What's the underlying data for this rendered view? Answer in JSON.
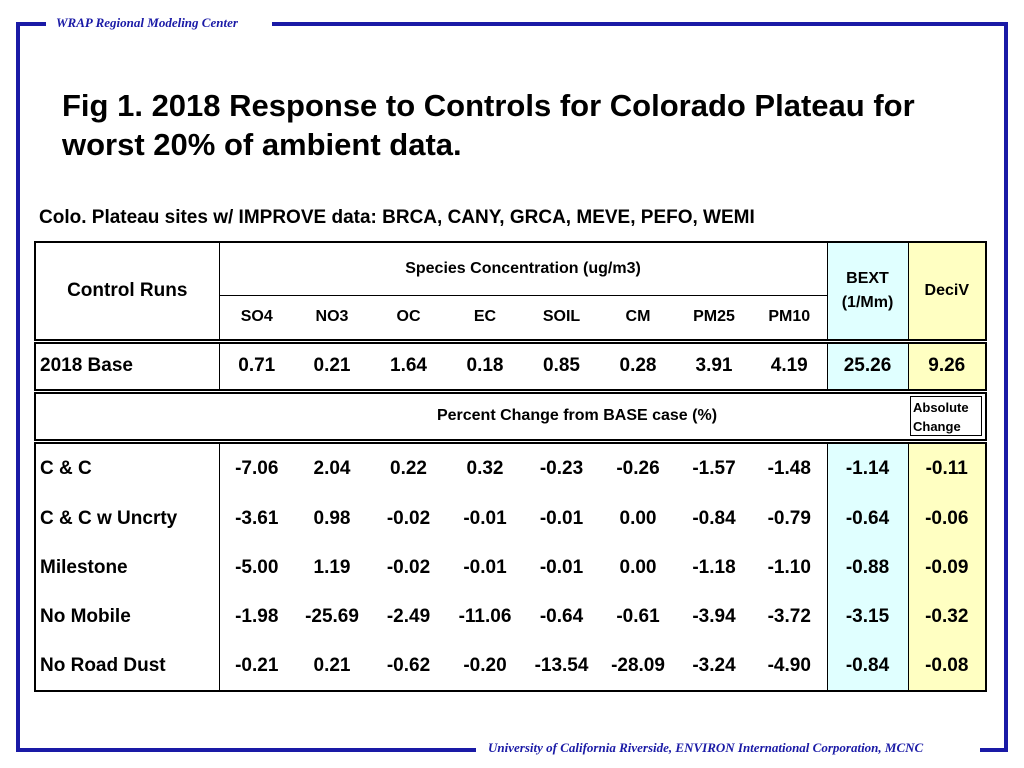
{
  "header_text": "WRAP Regional Modeling Center",
  "footer_text": "University of California Riverside, ENVIRON International Corporation, MCNC",
  "title": "Fig 1.  2018 Response to Controls for Colorado Plateau for worst 20% of ambient data.",
  "subtitle": "Colo. Plateau sites w/ IMPROVE data: BRCA, CANY, GRCA, MEVE, PEFO, WEMI",
  "table": {
    "control_runs_label": "Control Runs",
    "species_header": "Species Concentration (ug/m3)",
    "bext_header": "BEXT (1/Mm)",
    "deciv_header": "DeciV",
    "species": [
      "SO4",
      "NO3",
      "OC",
      "EC",
      "SOIL",
      "CM",
      "PM25",
      "PM10"
    ],
    "base_row": {
      "label": "2018 Base",
      "values": [
        "0.71",
        "0.21",
        "1.64",
        "0.18",
        "0.85",
        "0.28",
        "3.91",
        "4.19",
        "25.26",
        "9.26"
      ]
    },
    "percent_change_label": "Percent Change from BASE case (%)",
    "absolute_change_label": "Absolute Change",
    "rows": [
      {
        "label": "C & C",
        "values": [
          "-7.06",
          "2.04",
          "0.22",
          "0.32",
          "-0.23",
          "-0.26",
          "-1.57",
          "-1.48",
          "-1.14",
          "-0.11"
        ]
      },
      {
        "label": "C & C w Uncrty",
        "values": [
          "-3.61",
          "0.98",
          "-0.02",
          "-0.01",
          "-0.01",
          "0.00",
          "-0.84",
          "-0.79",
          "-0.64",
          "-0.06"
        ]
      },
      {
        "label": "Milestone",
        "values": [
          "-5.00",
          "1.19",
          "-0.02",
          "-0.01",
          "-0.01",
          "0.00",
          "-1.18",
          "-1.10",
          "-0.88",
          "-0.09"
        ]
      },
      {
        "label": "No Mobile",
        "values": [
          "-1.98",
          "-25.69",
          "-2.49",
          "-11.06",
          "-0.64",
          "-0.61",
          "-3.94",
          "-3.72",
          "-3.15",
          "-0.32"
        ]
      },
      {
        "label": "No Road Dust",
        "values": [
          "-0.21",
          "0.21",
          "-0.62",
          "-0.20",
          "-13.54",
          "-28.09",
          "-3.24",
          "-4.90",
          "-0.84",
          "-0.08"
        ]
      }
    ]
  },
  "colors": {
    "frame": "#1a1aa6",
    "bext_fill": "#e0ffff",
    "deciv_fill": "#ffffc2"
  }
}
